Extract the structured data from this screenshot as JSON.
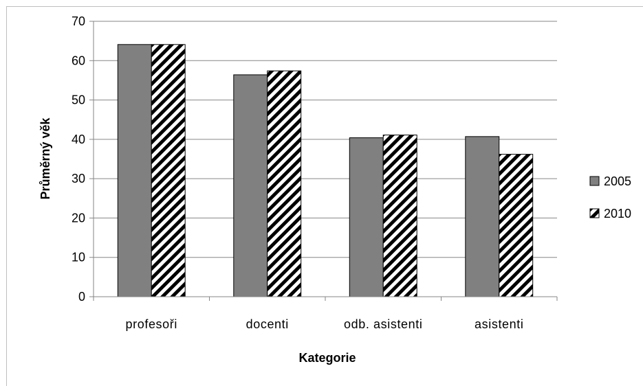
{
  "chart_data": {
    "type": "bar",
    "categories": [
      "profesoři",
      "docenti",
      "odb. asistenti",
      "asistenti"
    ],
    "series": [
      {
        "name": "2005",
        "values": [
          64.1,
          56.4,
          40.4,
          40.7
        ],
        "pattern": "solid",
        "color": "#808080"
      },
      {
        "name": "2010",
        "values": [
          64.1,
          57.4,
          41.1,
          36.2
        ],
        "pattern": "diagonal-hatch",
        "color": "#000000"
      }
    ],
    "xlabel": "Kategorie",
    "ylabel": "Průměrný věk",
    "ylim": [
      0,
      70
    ],
    "yticks": [
      0,
      10,
      20,
      30,
      40,
      50,
      60,
      70
    ],
    "grid": true,
    "legend_position": "right"
  }
}
